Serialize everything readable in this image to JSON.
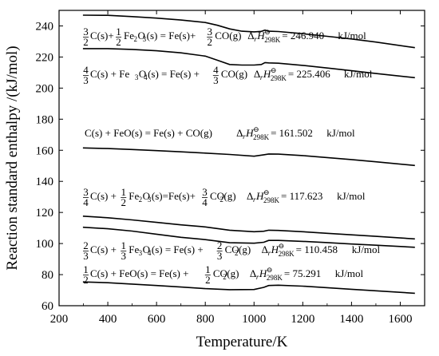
{
  "chart_data": {
    "type": "line",
    "xlabel": "Temperature/K",
    "ylabel": "Reaction standard enthalpy /(kJ/mol)",
    "xlim": [
      200,
      1700
    ],
    "ylim": [
      60,
      250
    ],
    "xticks": [
      "200",
      "400",
      "600",
      "800",
      "1000",
      "1200",
      "1400",
      "1600"
    ],
    "yticks": [
      "60",
      "80",
      "100",
      "120",
      "140",
      "160",
      "180",
      "200",
      "220",
      "240"
    ],
    "grid": false,
    "series": [
      {
        "reaction": "3/2 C(s) + 1/2 Fe2O3(s) = Fe(s) + 3/2 CO(g)",
        "dH298": "246.940",
        "unit": "kJ/mol",
        "x": [
          298,
          400,
          500,
          600,
          700,
          800,
          850,
          900,
          950,
          1000,
          1030,
          1045,
          1060,
          1100,
          1200,
          1300,
          1400,
          1500,
          1660
        ],
        "y": [
          246.9,
          246.8,
          246.0,
          245.0,
          243.8,
          242.2,
          240.4,
          238.1,
          236.6,
          236.2,
          236.5,
          237.3,
          236.6,
          236.4,
          235.0,
          233.3,
          231.6,
          229.6,
          226.0
        ]
      },
      {
        "reaction": "4/3 C(s) + Fe3O4(s) = Fe(s) + 4/3 CO(g)",
        "dH298": "225.406",
        "unit": "kJ/mol",
        "x": [
          298,
          400,
          500,
          600,
          700,
          800,
          850,
          900,
          950,
          1000,
          1030,
          1045,
          1060,
          1100,
          1200,
          1300,
          1400,
          1500,
          1660
        ],
        "y": [
          225.4,
          225.4,
          224.9,
          224.0,
          222.7,
          220.6,
          217.9,
          215.2,
          214.8,
          214.8,
          215.2,
          216.4,
          216.2,
          216.0,
          214.6,
          212.9,
          211.2,
          209.4,
          206.7
        ]
      },
      {
        "reaction": "C(s) + FeO(s) = Fe(s) + CO(g)",
        "dH298": "161.502",
        "unit": "kJ/mol",
        "x": [
          298,
          400,
          500,
          600,
          700,
          800,
          900,
          1000,
          1040,
          1060,
          1100,
          1200,
          1300,
          1400,
          1500,
          1660
        ],
        "y": [
          161.5,
          161.1,
          160.5,
          159.8,
          159.0,
          158.2,
          157.3,
          156.2,
          157.1,
          157.6,
          157.5,
          156.6,
          155.3,
          154.0,
          152.6,
          150.2
        ]
      },
      {
        "reaction": "3/4 C(s) + 1/2 Fe2O3(s) = Fe(s) + 3/4 CO2(g)",
        "dH298": "117.623",
        "unit": "kJ/mol",
        "x": [
          298,
          400,
          500,
          600,
          700,
          800,
          900,
          1000,
          1040,
          1060,
          1100,
          1200,
          1300,
          1400,
          1500,
          1660
        ],
        "y": [
          117.6,
          116.6,
          115.2,
          113.6,
          112.0,
          110.7,
          108.6,
          107.6,
          107.9,
          108.6,
          108.4,
          107.6,
          106.6,
          105.6,
          104.6,
          103.0
        ]
      },
      {
        "reaction": "2/3 C(s) + 1/3 Fe3O4(s) = Fe(s) + 2/3 CO2(g)",
        "dH298": "110.458",
        "unit": "kJ/mol",
        "x": [
          298,
          400,
          500,
          600,
          700,
          800,
          900,
          1000,
          1040,
          1060,
          1100,
          1200,
          1300,
          1400,
          1500,
          1660
        ],
        "y": [
          110.5,
          109.5,
          108.0,
          106.0,
          104.0,
          102.5,
          100.5,
          100.2,
          100.8,
          102.0,
          102.0,
          101.4,
          100.6,
          99.7,
          98.9,
          97.6
        ]
      },
      {
        "reaction": "1/2 C(s) + FeO(s) = Fe(s) + 1/2 CO2(g)",
        "dH298": "75.291",
        "unit": "kJ/mol",
        "x": [
          298,
          400,
          500,
          600,
          700,
          800,
          900,
          1000,
          1040,
          1060,
          1100,
          1200,
          1300,
          1400,
          1500,
          1660
        ],
        "y": [
          75.3,
          74.8,
          73.9,
          73.0,
          72.0,
          71.0,
          70.3,
          70.4,
          71.8,
          73.0,
          73.2,
          72.6,
          71.6,
          70.6,
          69.6,
          68.0
        ]
      }
    ],
    "annotations": [
      {
        "coef": [
          "3",
          "2"
        ],
        "text1": "C(s)+",
        "coef2": [
          "1",
          "2"
        ],
        "species": "Fe",
        "sub1": "2",
        "rest1": "O",
        "sub2": "3",
        "text2": "(s) = Fe(s)+",
        "coef3": [
          "3",
          "2"
        ],
        "product": "CO(g)",
        "dh_symbol": "Δ",
        "dh_r": "r",
        "dh_H": "H",
        "dh_sub": "298K",
        "dh_sup": "⊖",
        "dh_eq": " = 246.940",
        "unit": "kJ/mol"
      },
      {
        "coef": [
          "4",
          "3"
        ],
        "text1": "C(s) + Fe",
        "sub1": "3",
        "rest1": "O",
        "sub2": "4",
        "text2": "(s) = Fe(s) +",
        "coef3": [
          "4",
          "3"
        ],
        "product": "CO(g)",
        "dh_symbol": "Δ",
        "dh_r": "r",
        "dh_H": "H",
        "dh_sub": "298K",
        "dh_sup": "⊖",
        "dh_eq": " = 225.406",
        "unit": "kJ/mol"
      },
      {
        "text1": "C(s) + FeO(s) = Fe(s) + CO(g)",
        "dh_symbol": "Δ",
        "dh_r": "r",
        "dh_H": "H",
        "dh_sub": "298K",
        "dh_sup": "⊖",
        "dh_eq": " = 161.502",
        "unit": "kJ/mol"
      },
      {
        "coef": [
          "3",
          "4"
        ],
        "text1": "C(s) +",
        "coef2": [
          "1",
          "2"
        ],
        "species": "Fe",
        "sub1": "2",
        "rest1": "O",
        "sub2": "3",
        "text2": "(s)=Fe(s)+",
        "coef3": [
          "3",
          "4"
        ],
        "product": "CO",
        "sub3": "2",
        "product2": "(g)",
        "dh_symbol": "Δ",
        "dh_r": "r",
        "dh_H": "H",
        "dh_sub": "298K",
        "dh_sup": "⊖",
        "dh_eq": " = 117.623",
        "unit": "kJ/mol"
      },
      {
        "coef": [
          "2",
          "3"
        ],
        "text1": "C(s) +",
        "coef2": [
          "1",
          "3"
        ],
        "species": "Fe",
        "sub1": "3",
        "rest1": "O",
        "sub2": "4",
        "text2": "(s) = Fe(s) +",
        "coef3": [
          "2",
          "3"
        ],
        "product": "CO",
        "sub3": "2",
        "product2": "(g)",
        "dh_symbol": "Δ",
        "dh_r": "r",
        "dh_H": "H",
        "dh_sub": "298K",
        "dh_sup": "⊖",
        "dh_eq": " = 110.458",
        "unit": "kJ/mol"
      },
      {
        "coef": [
          "1",
          "2"
        ],
        "text1": "C(s) + FeO(s) = Fe(s) +",
        "coef3": [
          "1",
          "2"
        ],
        "product": "CO",
        "sub3": "2",
        "product2": "(g)",
        "dh_symbol": "Δ",
        "dh_r": "r",
        "dh_H": "H",
        "dh_sub": "298K",
        "dh_sup": "⊖",
        "dh_eq": " = 75.291",
        "unit": "kJ/mol"
      }
    ]
  }
}
